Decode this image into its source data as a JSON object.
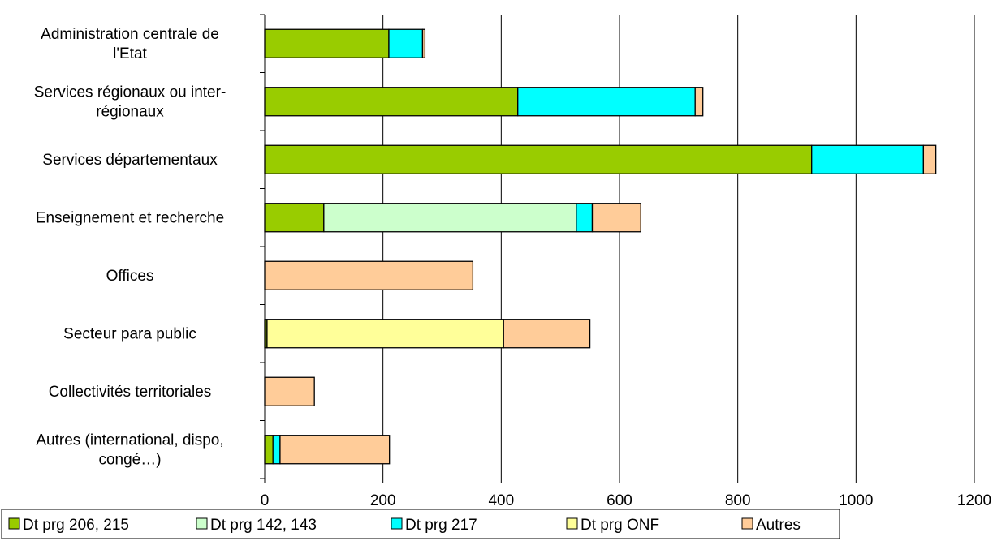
{
  "chart_data": {
    "type": "bar",
    "orientation": "horizontal",
    "stacked": true,
    "categories": [
      "Administration centrale de l'Etat",
      "Services régionaux ou inter-régionaux",
      "Services départementaux",
      "Enseignement et recherche",
      "Offices",
      "Secteur para public",
      "Collectivités territoriales",
      "Autres (international, dispo, congé…)"
    ],
    "category_lines": [
      [
        "Administration centrale de",
        "l'Etat"
      ],
      [
        "Services régionaux ou inter-",
        "régionaux"
      ],
      [
        "Services départementaux"
      ],
      [
        "Enseignement et recherche"
      ],
      [
        "Offices"
      ],
      [
        "Secteur para public"
      ],
      [
        "Collectivités territoriales"
      ],
      [
        "Autres (international, dispo,",
        "congé…)"
      ]
    ],
    "series": [
      {
        "name": "Dt prg 206, 215",
        "color": "#99cc00",
        "values": [
          210,
          428,
          925,
          100,
          0,
          4,
          0,
          14
        ]
      },
      {
        "name": "Dt prg 142, 143",
        "color": "#ccffcc",
        "values": [
          0,
          0,
          0,
          427,
          0,
          0,
          0,
          0
        ]
      },
      {
        "name": "Dt prg 217",
        "color": "#00ffff",
        "values": [
          57,
          300,
          189,
          27,
          0,
          0,
          0,
          12
        ]
      },
      {
        "name": "Dt prg ONF",
        "color": "#ffff99",
        "values": [
          0,
          0,
          0,
          0,
          0,
          400,
          0,
          0
        ]
      },
      {
        "name": "Autres",
        "color": "#ffcc99",
        "values": [
          4,
          13,
          21,
          82,
          352,
          146,
          84,
          185
        ]
      }
    ],
    "xlim": [
      0,
      1200
    ],
    "xticks": [
      "0",
      "200",
      "400",
      "600",
      "800",
      "1000",
      "1200"
    ],
    "grid": "vertical",
    "legend_position": "bottom",
    "title": "",
    "xlabel": "",
    "ylabel": ""
  }
}
